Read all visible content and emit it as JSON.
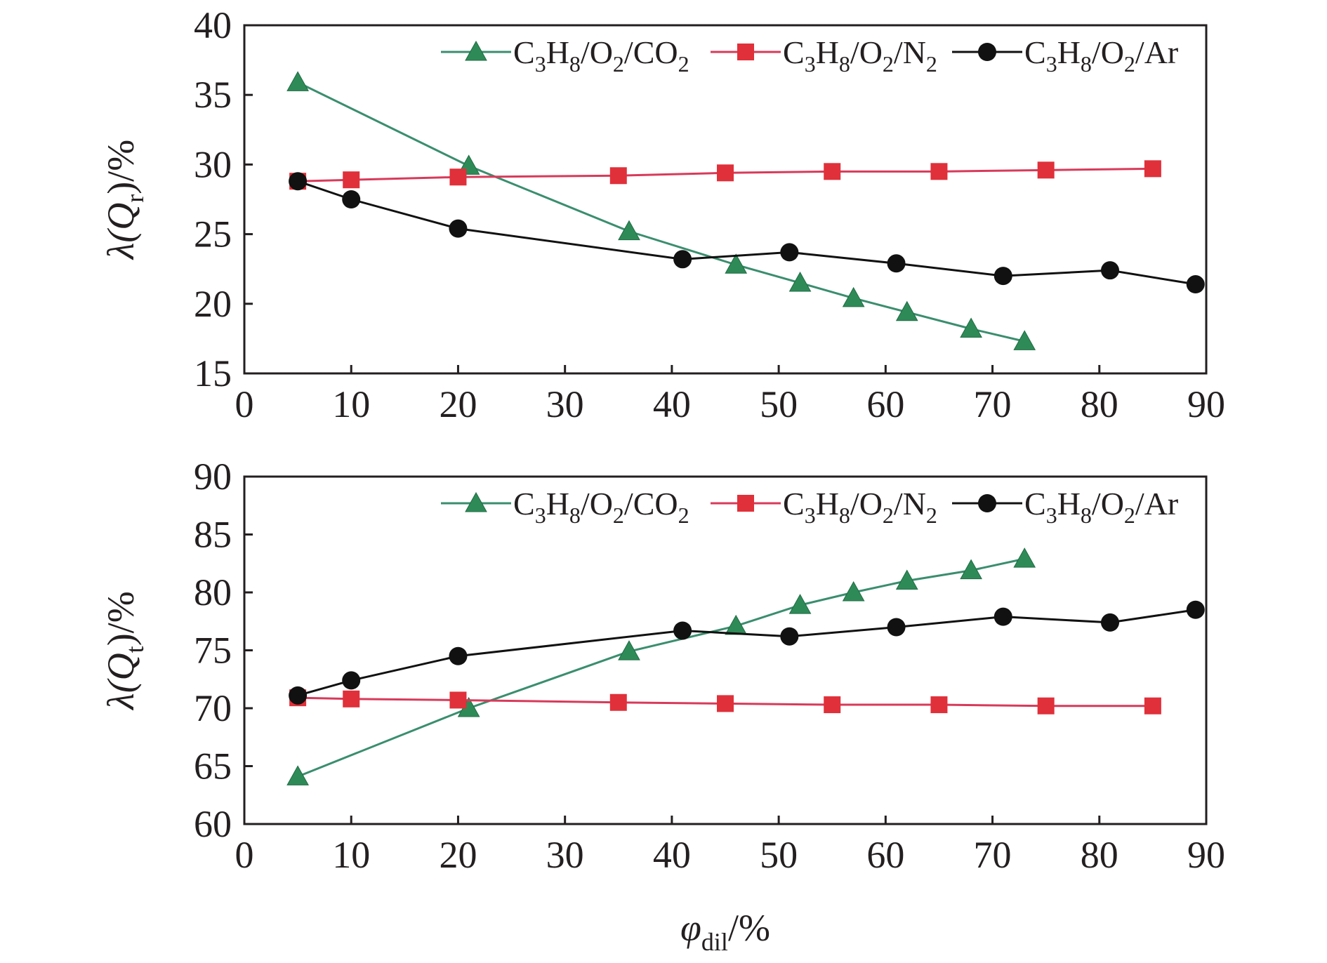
{
  "chart_data": [
    {
      "type": "line",
      "panel": "top",
      "ylabel": {
        "main": "λ(",
        "q": "Q",
        "sub": "r",
        "tail": ")/%"
      },
      "xlim": [
        0,
        90
      ],
      "ylim": [
        15,
        40
      ],
      "xticks": [
        "0",
        "10",
        "20",
        "30",
        "40",
        "50",
        "60",
        "70",
        "80",
        "90"
      ],
      "yticks": [
        "15",
        "20",
        "25",
        "30",
        "35",
        "40"
      ],
      "legend_position": "top-right",
      "series": [
        {
          "name": "C3H8/O2/CO2",
          "label_parts": [
            [
              "C",
              ""
            ],
            [
              "3",
              "sub"
            ],
            [
              "H",
              ""
            ],
            [
              "8",
              "sub"
            ],
            [
              "/O",
              ""
            ],
            [
              "2",
              "sub"
            ],
            [
              "/CO",
              ""
            ],
            [
              "2",
              "sub"
            ]
          ],
          "marker": "triangle",
          "color": "#2e8b57",
          "line_color": "#3a8e6f",
          "x": [
            5,
            21,
            36,
            46,
            52,
            57,
            62,
            68,
            73
          ],
          "y": [
            35.9,
            29.9,
            25.2,
            22.8,
            21.5,
            20.4,
            19.4,
            18.2,
            17.3
          ]
        },
        {
          "name": "C3H8/O2/N2",
          "label_parts": [
            [
              "C",
              ""
            ],
            [
              "3",
              "sub"
            ],
            [
              "H",
              ""
            ],
            [
              "8",
              "sub"
            ],
            [
              "/O",
              ""
            ],
            [
              "2",
              "sub"
            ],
            [
              "/N",
              ""
            ],
            [
              "2",
              "sub"
            ]
          ],
          "marker": "square",
          "color": "#e0303a",
          "line_color": "#d83a5a",
          "x": [
            5,
            10,
            20,
            35,
            45,
            55,
            65,
            75,
            85
          ],
          "y": [
            28.8,
            28.9,
            29.1,
            29.2,
            29.4,
            29.5,
            29.5,
            29.6,
            29.7
          ]
        },
        {
          "name": "C3H8/O2/Ar",
          "label_parts": [
            [
              "C",
              ""
            ],
            [
              "3",
              "sub"
            ],
            [
              "H",
              ""
            ],
            [
              "8",
              "sub"
            ],
            [
              "/O",
              ""
            ],
            [
              "2",
              "sub"
            ],
            [
              "/Ar",
              ""
            ]
          ],
          "marker": "circle",
          "color": "#111111",
          "line_color": "#111111",
          "x": [
            5,
            10,
            20,
            41,
            51,
            61,
            71,
            81,
            89
          ],
          "y": [
            28.8,
            27.5,
            25.4,
            23.2,
            23.7,
            22.9,
            22.0,
            22.4,
            21.4
          ]
        }
      ]
    },
    {
      "type": "line",
      "panel": "bottom",
      "ylabel": {
        "main": "λ(",
        "q": "Q",
        "sub": "t",
        "tail": ")/%"
      },
      "xlabel": {
        "main": "φ",
        "sub": "dil",
        "tail": "/%"
      },
      "xlim": [
        0,
        90
      ],
      "ylim": [
        60,
        90
      ],
      "xticks": [
        "0",
        "10",
        "20",
        "30",
        "40",
        "50",
        "60",
        "70",
        "80",
        "90"
      ],
      "yticks": [
        "60",
        "65",
        "70",
        "75",
        "80",
        "85",
        "90"
      ],
      "legend_position": "top-right",
      "series": [
        {
          "name": "C3H8/O2/CO2",
          "label_parts": [
            [
              "C",
              ""
            ],
            [
              "3",
              "sub"
            ],
            [
              "H",
              ""
            ],
            [
              "8",
              "sub"
            ],
            [
              "/O",
              ""
            ],
            [
              "2",
              "sub"
            ],
            [
              "/CO",
              ""
            ],
            [
              "2",
              "sub"
            ]
          ],
          "marker": "triangle",
          "color": "#2e8b57",
          "line_color": "#3a8e6f",
          "x": [
            5,
            21,
            36,
            46,
            52,
            57,
            62,
            68,
            73
          ],
          "y": [
            64.1,
            70.0,
            74.9,
            77.1,
            78.9,
            80.0,
            81.0,
            81.9,
            82.9
          ]
        },
        {
          "name": "C3H8/O2/N2",
          "label_parts": [
            [
              "C",
              ""
            ],
            [
              "3",
              "sub"
            ],
            [
              "H",
              ""
            ],
            [
              "8",
              "sub"
            ],
            [
              "/O",
              ""
            ],
            [
              "2",
              "sub"
            ],
            [
              "/N",
              ""
            ],
            [
              "2",
              "sub"
            ]
          ],
          "marker": "square",
          "color": "#e0303a",
          "line_color": "#d83a5a",
          "x": [
            5,
            10,
            20,
            35,
            45,
            55,
            65,
            75,
            85
          ],
          "y": [
            70.9,
            70.8,
            70.7,
            70.5,
            70.4,
            70.3,
            70.3,
            70.2,
            70.2
          ]
        },
        {
          "name": "C3H8/O2/Ar",
          "label_parts": [
            [
              "C",
              ""
            ],
            [
              "3",
              "sub"
            ],
            [
              "H",
              ""
            ],
            [
              "8",
              "sub"
            ],
            [
              "/O",
              ""
            ],
            [
              "2",
              "sub"
            ],
            [
              "/Ar",
              ""
            ]
          ],
          "marker": "circle",
          "color": "#111111",
          "line_color": "#111111",
          "x": [
            5,
            10,
            20,
            41,
            51,
            61,
            71,
            81,
            89
          ],
          "y": [
            71.1,
            72.4,
            74.5,
            76.7,
            76.2,
            77.0,
            77.9,
            77.4,
            78.5
          ]
        }
      ]
    }
  ]
}
